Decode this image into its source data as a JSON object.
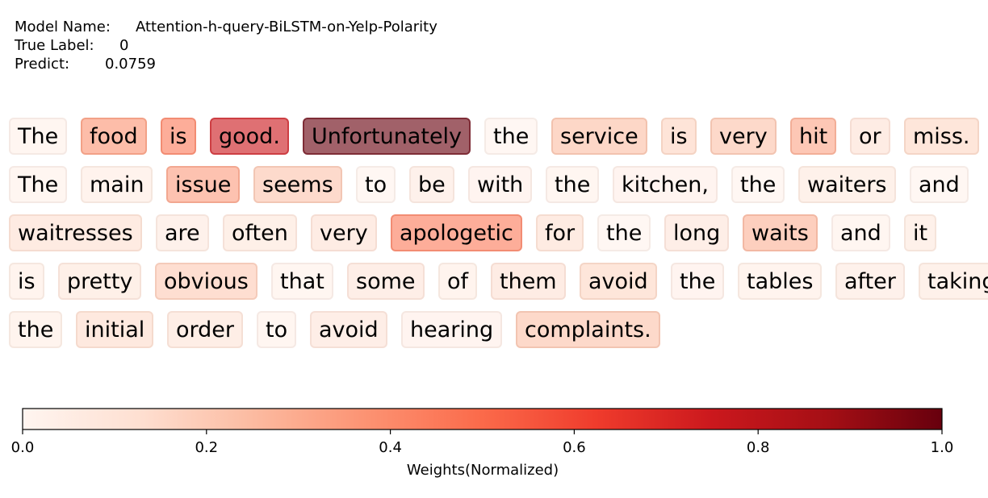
{
  "header": {
    "model_label": "Model Name:",
    "model_value": "Attention-h-query-BiLSTM-on-Yelp-Polarity",
    "true_label_label": "True Label:",
    "true_label_value": "0",
    "predict_label": "Predict:",
    "predict_value": "0.0759"
  },
  "chart_data": {
    "type": "heatmap",
    "subtype": "token-attention-highlight",
    "colormap": "Reds",
    "colormap_stops": [
      "#fff5f0",
      "#fee0d2",
      "#fcbba1",
      "#fc9272",
      "#fb6a4a",
      "#ef3b2c",
      "#cb181d",
      "#a50f15",
      "#67000d"
    ],
    "lines": [
      [
        [
          "The",
          0.03
        ],
        [
          "food",
          0.37
        ],
        [
          "is",
          0.45
        ],
        [
          "good.",
          0.75
        ],
        [
          "Unfortunately",
          1.0
        ],
        [
          "the",
          0.02
        ],
        [
          "service",
          0.24
        ],
        [
          "is",
          0.17
        ],
        [
          "very",
          0.23
        ],
        [
          "hit",
          0.32
        ],
        [
          "or",
          0.12
        ],
        [
          "miss.",
          0.16
        ]
      ],
      [
        [
          "The",
          0.03
        ],
        [
          "main",
          0.06
        ],
        [
          "issue",
          0.34
        ],
        [
          "seems",
          0.22
        ],
        [
          "to",
          0.02
        ],
        [
          "be",
          0.07
        ],
        [
          "with",
          0.04
        ],
        [
          "the",
          0.03
        ],
        [
          "kitchen,",
          0.04
        ],
        [
          "the",
          0.02
        ],
        [
          "waiters",
          0.08
        ],
        [
          "and",
          0.02
        ]
      ],
      [
        [
          "waitresses",
          0.13
        ],
        [
          "are",
          0.07
        ],
        [
          "often",
          0.09
        ],
        [
          "very",
          0.12
        ],
        [
          "apologetic",
          0.45
        ],
        [
          "for",
          0.13
        ],
        [
          "the",
          0.02
        ],
        [
          "long",
          0.1
        ],
        [
          "waits",
          0.28
        ],
        [
          "and",
          0.03
        ],
        [
          "it",
          0.08
        ]
      ],
      [
        [
          "is",
          0.05
        ],
        [
          "pretty",
          0.09
        ],
        [
          "obvious",
          0.2
        ],
        [
          "that",
          0.03
        ],
        [
          "some",
          0.1
        ],
        [
          "of",
          0.05
        ],
        [
          "them",
          0.12
        ],
        [
          "avoid",
          0.16
        ],
        [
          "the",
          0.04
        ],
        [
          "tables",
          0.05
        ],
        [
          "after",
          0.07
        ],
        [
          "taking",
          0.08
        ]
      ],
      [
        [
          "the",
          0.05
        ],
        [
          "initial",
          0.14
        ],
        [
          "order",
          0.11
        ],
        [
          "to",
          0.03
        ],
        [
          "avoid",
          0.1
        ],
        [
          "hearing",
          0.04
        ],
        [
          "complaints.",
          0.23
        ]
      ]
    ],
    "colorbar": {
      "min": 0.0,
      "max": 1.0,
      "ticks": [
        0.0,
        0.2,
        0.4,
        0.6,
        0.8,
        1.0
      ],
      "tick_labels": [
        "0.0",
        "0.2",
        "0.4",
        "0.6",
        "0.8",
        "1.0"
      ],
      "label": "Weights(Normalized)"
    }
  }
}
